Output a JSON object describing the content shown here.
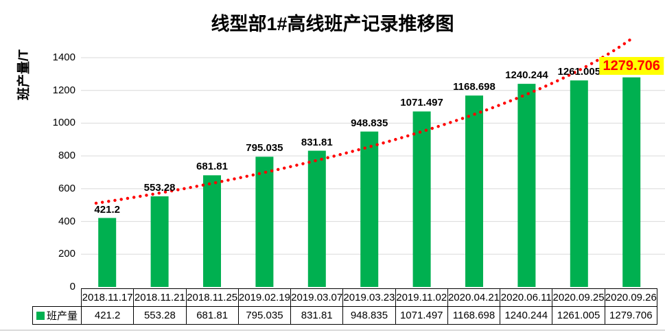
{
  "title": "线型部1#高线班产记录推移图",
  "y_axis": {
    "title": "班产量/T",
    "ticks": [
      0,
      200,
      400,
      600,
      800,
      1000,
      1200,
      1400
    ],
    "max": 1400
  },
  "legend": {
    "label": "班产量",
    "swatch_color": "#00B050"
  },
  "colors": {
    "bar": "#00B050",
    "trendline": "#FF0000",
    "gridline": "#D9D9D9",
    "highlight_bg": "#FFFF00",
    "highlight_text": "#FF0000",
    "table_border": "#000000",
    "text": "#000000"
  },
  "chart_data": {
    "type": "bar",
    "title": "线型部1#高线班产记录推移图",
    "xlabel": "",
    "ylabel": "班产量/T",
    "ylim": [
      0,
      1400
    ],
    "y_ticks": [
      0,
      200,
      400,
      600,
      800,
      1000,
      1200,
      1400
    ],
    "grid": "horizontal",
    "legend_position": "bottom-left",
    "categories": [
      "2018.11.17",
      "2018.11.21",
      "2018.11.25",
      "2019.02.19",
      "2019.03.07",
      "2019.03.23",
      "2019.11.02",
      "2020.04.21",
      "2020.06.11",
      "2020.09.25",
      "2020.09.26"
    ],
    "series": [
      {
        "name": "班产量",
        "values": [
          421.2,
          553.28,
          681.81,
          795.035,
          831.81,
          948.835,
          1071.497,
          1168.698,
          1240.244,
          1261.005,
          1279.706
        ]
      }
    ],
    "data_labels": [
      "421.2",
      "553.28",
      "681.81",
      "795.035",
      "831.81",
      "948.835",
      "1071.497",
      "1168.698",
      "1240.244",
      "1261.005",
      "1279.706"
    ],
    "highlighted_label_index": 10,
    "trendline": {
      "series": "班产量",
      "style": "dotted",
      "color": "#FF0000"
    }
  }
}
